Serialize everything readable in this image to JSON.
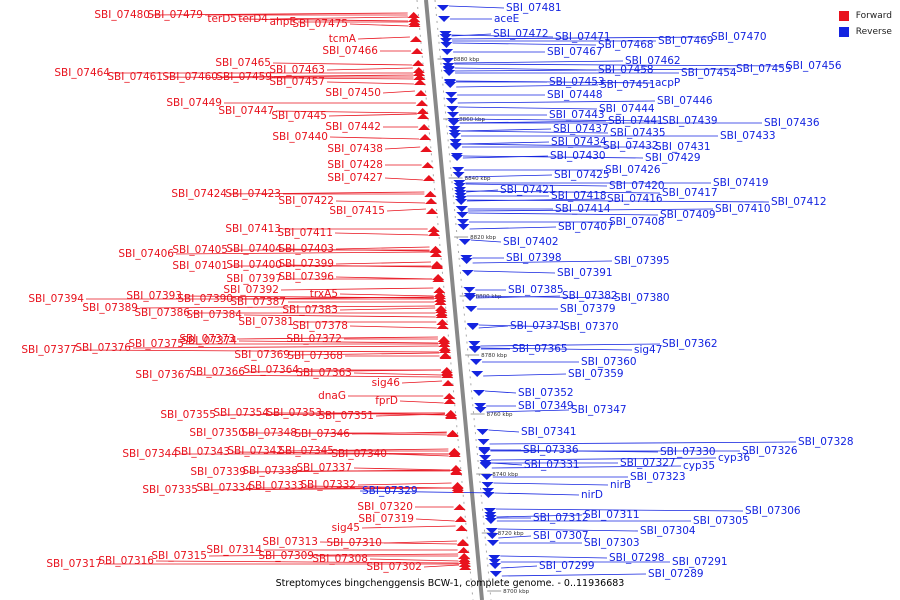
{
  "caption": "Streptomyces bingchenggensis BCW-1, complete genome. - 0..11936683",
  "legend": {
    "forward": {
      "label": "Forward",
      "color": "#e8121d"
    },
    "reverse": {
      "label": "Reverse",
      "color": "#1424e0"
    }
  },
  "kbp_marks": [
    "8880 kbp",
    "8860 kbp",
    "8840 kbp",
    "8820 kbp",
    "8800 kbp",
    "8780 kbp",
    "8760 kbp",
    "8740 kbp",
    "8720 kbp",
    "8700 kbp"
  ],
  "forward_genes": [
    "SBI_07480",
    "SBI_07479",
    "terD5",
    "terD4",
    "ahpE",
    "SBI_07475",
    "tcmA",
    "SBI_07466",
    "SBI_07465",
    "SBI_07463",
    "SBI_07464",
    "SBI_07461",
    "SBI_07460",
    "SBI_07459",
    "SBI_07457",
    "SBI_07450",
    "SBI_07449",
    "SBI_07447",
    "SBI_07445",
    "SBI_07442",
    "SBI_07440",
    "SBI_07438",
    "SBI_07428",
    "SBI_07427",
    "SBI_07424",
    "SBI_07423",
    "SBI_07422",
    "SBI_07415",
    "SBI_07413",
    "SBI_07411",
    "SBI_07406",
    "SBI_07405",
    "SBI_07404",
    "SBI_07403",
    "SBI_07401",
    "SBI_07400",
    "SBI_07399",
    "SBI_07397",
    "SBI_07396",
    "SBI_07392",
    "SBI_07394",
    "SBI_07393",
    "SBI_07390",
    "SBI_07387",
    "trxA5",
    "SBI_07389",
    "SBI_07386",
    "SBI_07384",
    "SBI_07383",
    "SBI_07381",
    "SBI_07378",
    "SBI_07373",
    "SBI_07372",
    "SBI_07377",
    "SBI_07376",
    "SBI_07375",
    "SBI_07374",
    "SBI_07369",
    "SBI_07368",
    "SBI_07367",
    "SBI_07366",
    "SBI_07364",
    "SBI_07363",
    "sig46",
    "dnaG",
    "fprD",
    "SBI_07355",
    "SBI_07354",
    "SBI_07353",
    "SBI_07351",
    "SBI_07350",
    "SBI_07348",
    "SBI_07346",
    "SBI_07344",
    "SBI_07343",
    "SBI_07342",
    "SBI_07345",
    "SBI_07340",
    "SBI_07339",
    "SBI_07338",
    "SBI_07337",
    "SBI_07335",
    "SBI_07334",
    "SBI_07333",
    "SBI_07332",
    "SBI_07320",
    "SBI_07319",
    "sig45",
    "SBI_07314",
    "SBI_07313",
    "SBI_07310",
    "SBI_07317",
    "SBI_07316",
    "SBI_07315",
    "SBI_07309",
    "SBI_07308",
    "SBI_07302"
  ],
  "reverse_genes": [
    "SBI_07481",
    "aceE",
    "SBI_07472",
    "SBI_07471",
    "SBI_07469",
    "SBI_07470",
    "SBI_07468",
    "SBI_07467",
    "SBI_07462",
    "SBI_07458",
    "SBI_07454",
    "SBI_07455",
    "SBI_07456",
    "SBI_07453",
    "SBI_07451",
    "acpP",
    "SBI_07448",
    "SBI_07446",
    "SBI_07444",
    "SBI_07443",
    "SBI_07441",
    "SBI_07439",
    "SBI_07436",
    "SBI_07437",
    "SBI_07435",
    "SBI_07433",
    "SBI_07434",
    "SBI_07432",
    "SBI_07431",
    "SBI_07430",
    "SBI_07429",
    "SBI_07426",
    "SBI_07425",
    "SBI_07420",
    "SBI_07419",
    "SBI_07421",
    "SBI_07417",
    "SBI_07418",
    "SBI_07416",
    "SBI_07412",
    "SBI_07414",
    "SBI_07410",
    "SBI_07409",
    "SBI_07408",
    "SBI_07407",
    "SBI_07402",
    "SBI_07398",
    "SBI_07395",
    "SBI_07391",
    "SBI_07385",
    "SBI_07382",
    "SBI_07380",
    "SBI_07379",
    "SBI_07371",
    "SBI_07370",
    "SBI_07365",
    "SBI_07362",
    "sig47",
    "SBI_07360",
    "SBI_07359",
    "SBI_07352",
    "SBI_07349",
    "SBI_07347",
    "SBI_07341",
    "SBI_07336",
    "SBI_07328",
    "SBI_07330",
    "SBI_07326",
    "cyp36",
    "SBI_07331",
    "SBI_07327",
    "cyp35",
    "nirB",
    "SBI_07323",
    "SBI_07329",
    "nirD",
    "SBI_07312",
    "SBI_07311",
    "SBI_07306",
    "SBI_07305",
    "SBI_07307",
    "SBI_07304",
    "SBI_07303",
    "SBI_07299",
    "SBI_07298",
    "SBI_07291",
    "SBI_07289"
  ]
}
